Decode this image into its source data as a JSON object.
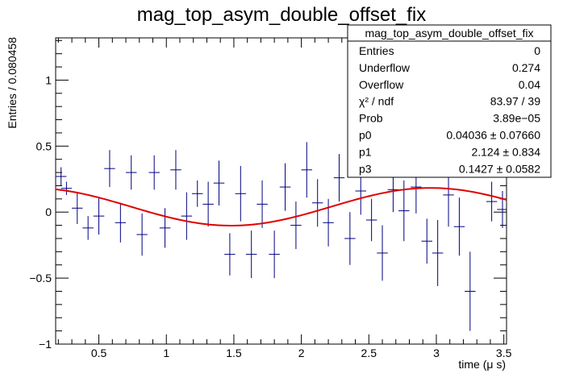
{
  "chart_data": {
    "type": "scatter",
    "title": "mag_top_asym_double_offset_fix",
    "xlabel": "time (μ s)",
    "ylabel": "Entries / 0.080458",
    "xlim": [
      0.18,
      3.52
    ],
    "ylim": [
      -1.0,
      1.32
    ],
    "x_ticks": [
      {
        "v": 0.5,
        "label": "0.5"
      },
      {
        "v": 1.0,
        "label": "1"
      },
      {
        "v": 1.5,
        "label": "1.5"
      },
      {
        "v": 2.0,
        "label": "2"
      },
      {
        "v": 2.5,
        "label": "2.5"
      },
      {
        "v": 3.0,
        "label": "3"
      },
      {
        "v": 3.5,
        "label": "3.5"
      }
    ],
    "y_ticks": [
      {
        "v": -1.0,
        "label": "−1"
      },
      {
        "v": -0.5,
        "label": "−0.5"
      },
      {
        "v": 0.0,
        "label": "0"
      },
      {
        "v": 0.5,
        "label": "0.5"
      },
      {
        "v": 1.0,
        "label": "1"
      }
    ],
    "bin_width": 0.080458,
    "series": [
      {
        "kind": "data-points",
        "color": "#000080",
        "points": [
          {
            "x": 0.22,
            "y": 0.27,
            "err": 0.07
          },
          {
            "x": 0.26,
            "y": 0.18,
            "err": 0.05
          },
          {
            "x": 0.34,
            "y": 0.03,
            "err": 0.12
          },
          {
            "x": 0.42,
            "y": -0.12,
            "err": 0.09
          },
          {
            "x": 0.5,
            "y": -0.03,
            "err": 0.14
          },
          {
            "x": 0.58,
            "y": 0.33,
            "err": 0.14
          },
          {
            "x": 0.66,
            "y": -0.08,
            "err": 0.15
          },
          {
            "x": 0.74,
            "y": 0.3,
            "err": 0.13
          },
          {
            "x": 0.82,
            "y": -0.17,
            "err": 0.16
          },
          {
            "x": 0.91,
            "y": 0.3,
            "err": 0.13
          },
          {
            "x": 0.99,
            "y": -0.12,
            "err": 0.15
          },
          {
            "x": 1.07,
            "y": 0.32,
            "err": 0.15
          },
          {
            "x": 1.15,
            "y": -0.03,
            "err": 0.18
          },
          {
            "x": 1.23,
            "y": 0.14,
            "err": 0.1
          },
          {
            "x": 1.31,
            "y": 0.06,
            "err": 0.17
          },
          {
            "x": 1.39,
            "y": 0.22,
            "err": 0.17
          },
          {
            "x": 1.47,
            "y": -0.32,
            "err": 0.16
          },
          {
            "x": 1.55,
            "y": 0.14,
            "err": 0.21
          },
          {
            "x": 1.63,
            "y": -0.32,
            "err": 0.18
          },
          {
            "x": 1.71,
            "y": 0.06,
            "err": 0.18
          },
          {
            "x": 1.8,
            "y": -0.32,
            "err": 0.18
          },
          {
            "x": 1.88,
            "y": 0.19,
            "err": 0.18
          },
          {
            "x": 1.96,
            "y": -0.1,
            "err": 0.18
          },
          {
            "x": 2.04,
            "y": 0.32,
            "err": 0.21
          },
          {
            "x": 2.12,
            "y": 0.07,
            "err": 0.18
          },
          {
            "x": 2.2,
            "y": -0.08,
            "err": 0.18
          },
          {
            "x": 2.28,
            "y": 0.26,
            "err": 0.18
          },
          {
            "x": 2.36,
            "y": -0.2,
            "err": 0.2
          },
          {
            "x": 2.44,
            "y": 0.16,
            "err": 0.18
          },
          {
            "x": 2.52,
            "y": -0.06,
            "err": 0.16
          },
          {
            "x": 2.6,
            "y": -0.31,
            "err": 0.21
          },
          {
            "x": 2.68,
            "y": 0.17,
            "err": 0.17
          },
          {
            "x": 2.76,
            "y": 0.01,
            "err": 0.23
          },
          {
            "x": 2.85,
            "y": 0.19,
            "err": 0.2
          },
          {
            "x": 2.93,
            "y": -0.22,
            "err": 0.17
          },
          {
            "x": 3.01,
            "y": -0.31,
            "err": 0.25
          },
          {
            "x": 3.09,
            "y": 0.13,
            "err": 0.24
          },
          {
            "x": 3.17,
            "y": -0.11,
            "err": 0.22
          },
          {
            "x": 3.25,
            "y": -0.6,
            "err": 0.3
          },
          {
            "x": 3.41,
            "y": 0.08,
            "err": 0.15
          },
          {
            "x": 3.49,
            "y": 0.02,
            "err": 0.14
          }
        ]
      },
      {
        "kind": "fit-curve",
        "color": "#e00000",
        "function": "p0 + p3 * cos(p1 * x)",
        "params": {
          "p0": 0.04036,
          "p1": 2.124,
          "p3": 0.1427
        }
      }
    ],
    "stats_box": {
      "title": "mag_top_asym_double_offset_fix",
      "rows": [
        {
          "label": "Entries",
          "value": "0"
        },
        {
          "label": "Underflow",
          "value": "0.274"
        },
        {
          "label": "Overflow",
          "value": "0.04"
        },
        {
          "label": "χ² / ndf",
          "value": "83.97 / 39"
        },
        {
          "label": "Prob",
          "value": "3.89e−05"
        },
        {
          "label": "p0",
          "value": "0.04036 ± 0.07660"
        },
        {
          "label": "p1",
          "value": "2.124 ± 0.834"
        },
        {
          "label": "p3",
          "value": "0.1427 ± 0.0582"
        }
      ]
    }
  }
}
